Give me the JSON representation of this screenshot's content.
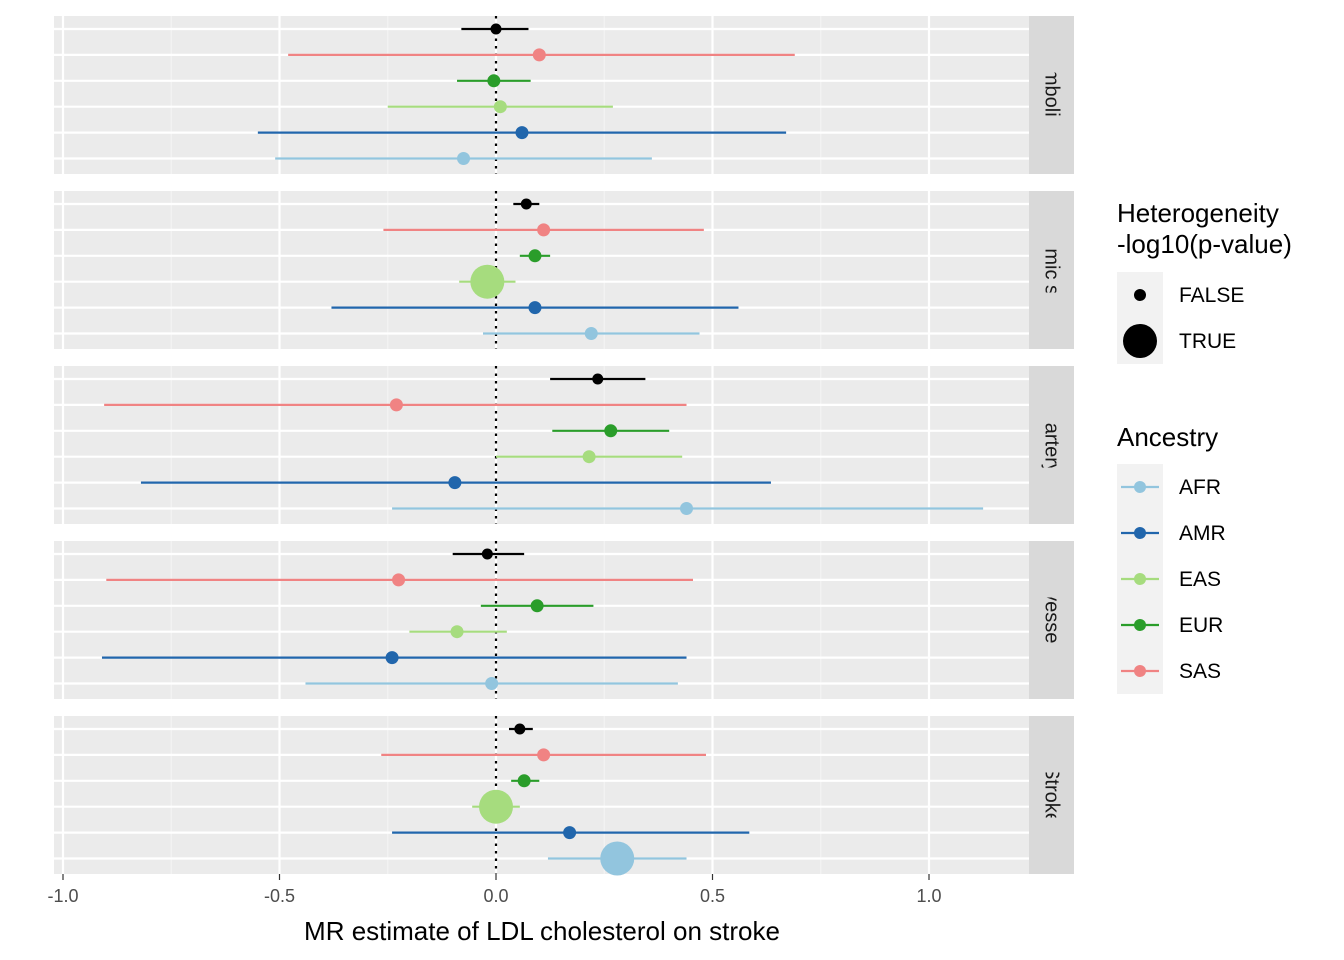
{
  "chart_data": {
    "type": "scatter",
    "subtype": "forest-plot-faceted",
    "xlabel": "MR estimate of LDL cholesterol on stroke",
    "xlim": [
      -1.0,
      1.35
    ],
    "x_ticks": [
      -1.0,
      -0.5,
      0.0,
      0.5,
      1.0
    ],
    "x_tick_labels": [
      "-1.0",
      "-0.5",
      "0.0",
      "0.5",
      "1.0"
    ],
    "reference_line_x": 0,
    "grid": true,
    "legend_position": "right",
    "size_legend": {
      "title_lines": [
        "Heterogeneity",
        "-log10(p-value)"
      ],
      "entries": [
        "FALSE",
        "TRUE"
      ]
    },
    "color_legend": {
      "title": "Ancestry",
      "entries": [
        {
          "name": "AFR",
          "color": "#92C5DE"
        },
        {
          "name": "AMR",
          "color": "#2166AC"
        },
        {
          "name": "EAS",
          "color": "#A6DC7E"
        },
        {
          "name": "EUR",
          "color": "#2A9D2A"
        },
        {
          "name": "SAS",
          "color": "#F08383"
        }
      ]
    },
    "row_order": [
      "ALL",
      "SAS",
      "EUR",
      "EAS",
      "AMR",
      "AFR"
    ],
    "row_colors": {
      "ALL": "#000000",
      "SAS": "#F08383",
      "EUR": "#2A9D2A",
      "EAS": "#A6DC7E",
      "AMR": "#2166AC",
      "AFR": "#92C5DE"
    },
    "panels": [
      {
        "label": "rdioembolic stro",
        "rows": [
          {
            "ancestry": "ALL",
            "est": 0.0,
            "lo": -0.08,
            "hi": 0.075,
            "het": false
          },
          {
            "ancestry": "SAS",
            "est": 0.1,
            "lo": -0.48,
            "hi": 0.69,
            "het": false
          },
          {
            "ancestry": "EUR",
            "est": -0.005,
            "lo": -0.09,
            "hi": 0.08,
            "het": false
          },
          {
            "ancestry": "EAS",
            "est": 0.01,
            "lo": -0.25,
            "hi": 0.27,
            "het": false
          },
          {
            "ancestry": "AMR",
            "est": 0.06,
            "lo": -0.55,
            "hi": 0.67,
            "het": false
          },
          {
            "ancestry": "AFR",
            "est": -0.075,
            "lo": -0.51,
            "hi": 0.36,
            "het": false
          }
        ]
      },
      {
        "label": "Ischemic stroke",
        "rows": [
          {
            "ancestry": "ALL",
            "est": 0.07,
            "lo": 0.04,
            "hi": 0.1,
            "het": false
          },
          {
            "ancestry": "SAS",
            "est": 0.11,
            "lo": -0.26,
            "hi": 0.48,
            "het": false
          },
          {
            "ancestry": "EUR",
            "est": 0.09,
            "lo": 0.055,
            "hi": 0.125,
            "het": false
          },
          {
            "ancestry": "EAS",
            "est": -0.02,
            "lo": -0.085,
            "hi": 0.045,
            "het": true
          },
          {
            "ancestry": "AMR",
            "est": 0.09,
            "lo": -0.38,
            "hi": 0.56,
            "het": false
          },
          {
            "ancestry": "AFR",
            "est": 0.22,
            "lo": -0.03,
            "hi": 0.47,
            "het": false
          }
        ]
      },
      {
        "label": "arge artery stro",
        "rows": [
          {
            "ancestry": "ALL",
            "est": 0.235,
            "lo": 0.125,
            "hi": 0.345,
            "het": false
          },
          {
            "ancestry": "SAS",
            "est": -0.23,
            "lo": -0.905,
            "hi": 0.44,
            "het": false
          },
          {
            "ancestry": "EUR",
            "est": 0.265,
            "lo": 0.13,
            "hi": 0.4,
            "het": false
          },
          {
            "ancestry": "EAS",
            "est": 0.215,
            "lo": 0.0,
            "hi": 0.43,
            "het": false
          },
          {
            "ancestry": "AMR",
            "est": -0.095,
            "lo": -0.82,
            "hi": 0.635,
            "het": false
          },
          {
            "ancestry": "AFR",
            "est": 0.44,
            "lo": -0.24,
            "hi": 1.125,
            "het": false
          }
        ]
      },
      {
        "label": "mall vessel strol",
        "rows": [
          {
            "ancestry": "ALL",
            "est": -0.02,
            "lo": -0.1,
            "hi": 0.065,
            "het": false
          },
          {
            "ancestry": "SAS",
            "est": -0.225,
            "lo": -0.9,
            "hi": 0.455,
            "het": false
          },
          {
            "ancestry": "EUR",
            "est": 0.095,
            "lo": -0.035,
            "hi": 0.225,
            "het": false
          },
          {
            "ancestry": "EAS",
            "est": -0.09,
            "lo": -0.2,
            "hi": 0.025,
            "het": false
          },
          {
            "ancestry": "AMR",
            "est": -0.24,
            "lo": -0.91,
            "hi": 0.44,
            "het": false
          },
          {
            "ancestry": "AFR",
            "est": -0.01,
            "lo": -0.44,
            "hi": 0.42,
            "het": false
          }
        ]
      },
      {
        "label": "Stroke",
        "rows": [
          {
            "ancestry": "ALL",
            "est": 0.055,
            "lo": 0.03,
            "hi": 0.085,
            "het": false
          },
          {
            "ancestry": "SAS",
            "est": 0.11,
            "lo": -0.265,
            "hi": 0.485,
            "het": false
          },
          {
            "ancestry": "EUR",
            "est": 0.065,
            "lo": 0.035,
            "hi": 0.1,
            "het": false
          },
          {
            "ancestry": "EAS",
            "est": 0.0,
            "lo": -0.055,
            "hi": 0.055,
            "het": true
          },
          {
            "ancestry": "AMR",
            "est": 0.17,
            "lo": -0.24,
            "hi": 0.585,
            "het": false
          },
          {
            "ancestry": "AFR",
            "est": 0.28,
            "lo": 0.12,
            "hi": 0.44,
            "het": true
          }
        ]
      }
    ]
  }
}
